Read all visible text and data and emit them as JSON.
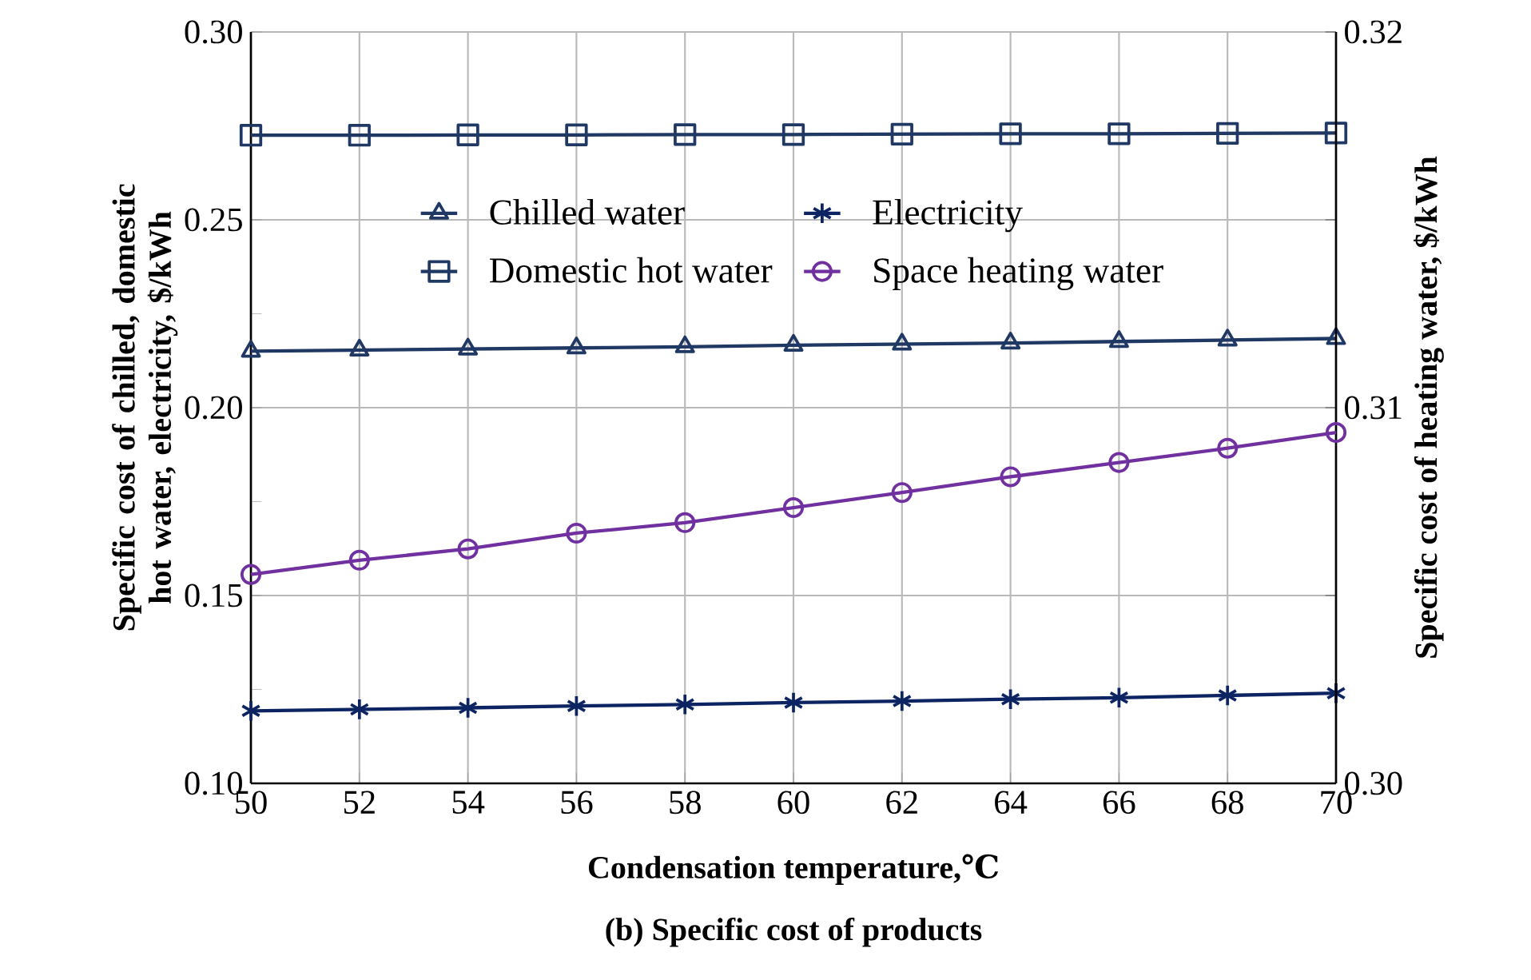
{
  "chart_data": {
    "type": "line",
    "xlabel": "Condensation temperature,℃",
    "ylabel": "Specific cost of chilled, domestic hot water, electricity, $/kWh",
    "y2label": "Specific cost of heating water, $/kWh",
    "annotations": [
      "(b) Specific cost of products"
    ],
    "x": [
      50,
      52,
      54,
      56,
      58,
      60,
      62,
      64,
      66,
      68,
      70
    ],
    "xlim": [
      50,
      70
    ],
    "xticks": [
      50,
      52,
      54,
      56,
      58,
      60,
      62,
      64,
      66,
      68,
      70
    ],
    "ylim": [
      0.1,
      0.3
    ],
    "yticks": [
      {
        "value": 0.1,
        "label": "0.10"
      },
      {
        "value": 0.125,
        "label": null
      },
      {
        "value": 0.15,
        "label": "0.15"
      },
      {
        "value": 0.175,
        "label": null
      },
      {
        "value": 0.2,
        "label": "0.20"
      },
      {
        "value": 0.225,
        "label": null
      },
      {
        "value": 0.25,
        "label": "0.25"
      },
      {
        "value": 0.275,
        "label": null
      },
      {
        "value": 0.3,
        "label": "0.30"
      }
    ],
    "y2lim": [
      0.3,
      0.32
    ],
    "y2ticks": [
      {
        "value": 0.3,
        "label": "0.30"
      },
      {
        "value": 0.305,
        "label": null
      },
      {
        "value": 0.31,
        "label": "0.31"
      },
      {
        "value": 0.315,
        "label": null
      },
      {
        "value": 0.32,
        "label": "0.32"
      }
    ],
    "grid": true,
    "legend": "top",
    "series": [
      {
        "name": "Chilled water",
        "color": "#203864",
        "marker": "triangle",
        "values": [
          0.215,
          0.2153,
          0.2156,
          0.2159,
          0.2162,
          0.2166,
          0.2169,
          0.2172,
          0.2176,
          0.218,
          0.2184
        ]
      },
      {
        "name": "Electricity",
        "color": "#0d2463",
        "marker": "cross",
        "values": [
          0.1193,
          0.1197,
          0.1201,
          0.1206,
          0.121,
          0.1215,
          0.1219,
          0.1224,
          0.1228,
          0.1234,
          0.124
        ]
      },
      {
        "name": "Domestic hot water",
        "color": "#203864",
        "marker": "square",
        "values": [
          0.2725,
          0.2725,
          0.2726,
          0.2726,
          0.2727,
          0.2727,
          0.2728,
          0.2729,
          0.2729,
          0.273,
          0.2731
        ]
      },
      {
        "name": "Space heating water",
        "color": "#7030a0",
        "marker": "circle",
        "axis": "y2",
        "values": [
          0.30556,
          0.30594,
          0.30624,
          0.30666,
          0.30694,
          0.30734,
          0.30774,
          0.30816,
          0.30854,
          0.30892,
          0.30934
        ]
      }
    ]
  }
}
